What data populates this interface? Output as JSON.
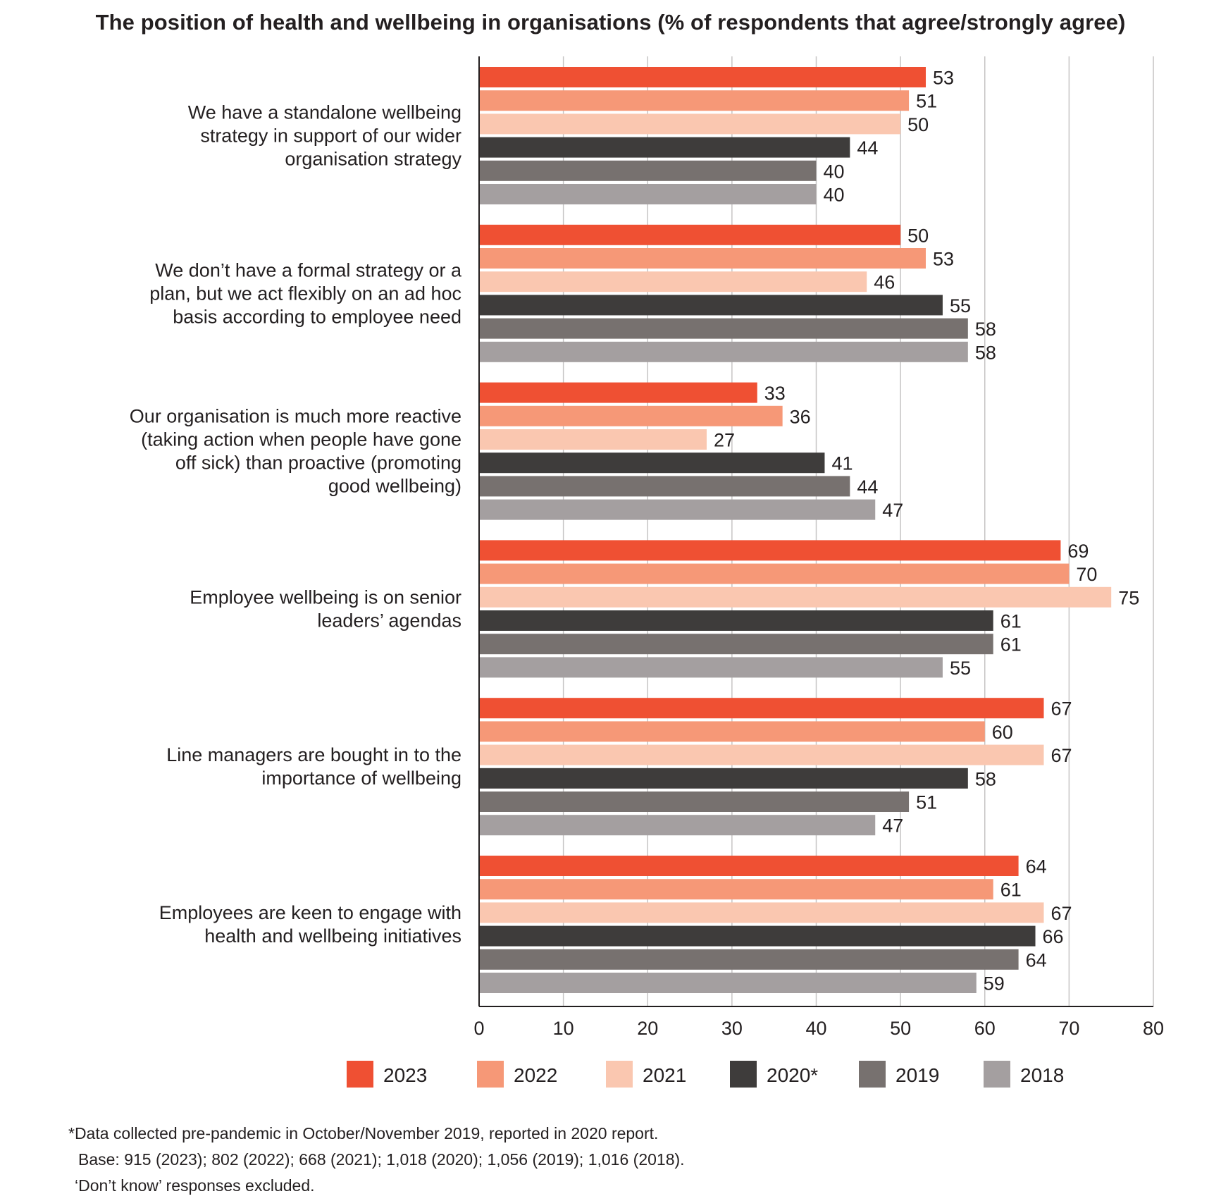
{
  "chart_data": {
    "type": "bar",
    "orientation": "horizontal",
    "title": "The position of health and wellbeing in organisations (% of respondents that agree/strongly agree)",
    "categories": [
      [
        "We have a standalone wellbeing",
        "strategy in support of our wider",
        "organisation strategy"
      ],
      [
        "We don’t have a formal strategy or a",
        "plan, but we act flexibly on an ad hoc",
        "basis according to employee need"
      ],
      [
        "Our organisation is much more reactive",
        "(taking action when people have gone",
        "off sick) than proactive (promoting",
        "good wellbeing)"
      ],
      [
        "Employee wellbeing is on senior",
        "leaders’ agendas"
      ],
      [
        "Line managers are bought in to the",
        "importance of wellbeing"
      ],
      [
        "Employees are keen to engage with",
        "health and wellbeing initiatives"
      ]
    ],
    "series": [
      {
        "name": "2023",
        "color": "#ef5033",
        "values": [
          53,
          50,
          33,
          69,
          67,
          64
        ]
      },
      {
        "name": "2022",
        "color": "#f69877",
        "values": [
          51,
          53,
          36,
          70,
          60,
          61
        ]
      },
      {
        "name": "2021",
        "color": "#fac7b0",
        "values": [
          50,
          46,
          27,
          75,
          67,
          67
        ]
      },
      {
        "name": "2020*",
        "color": "#3e3c3b",
        "values": [
          44,
          55,
          41,
          61,
          58,
          66
        ]
      },
      {
        "name": "2019",
        "color": "#77716f",
        "values": [
          40,
          58,
          44,
          61,
          51,
          64
        ]
      },
      {
        "name": "2018",
        "color": "#a49fa0",
        "values": [
          40,
          58,
          47,
          55,
          47,
          59
        ]
      }
    ],
    "xlim": [
      0,
      80
    ],
    "xticks": [
      "0",
      "10",
      "20",
      "30",
      "40",
      "50",
      "60",
      "70",
      "80"
    ],
    "grid": true,
    "legend_position": "bottom"
  },
  "footnotes": [
    "*Data collected pre-pandemic in October/November 2019, reported in 2020 report.",
    "Base: 915 (2023); 802 (2022); 668 (2021); 1,018 (2020); 1,056 (2019); 1,016 (2018).",
    "‘Don’t know’ responses excluded."
  ]
}
